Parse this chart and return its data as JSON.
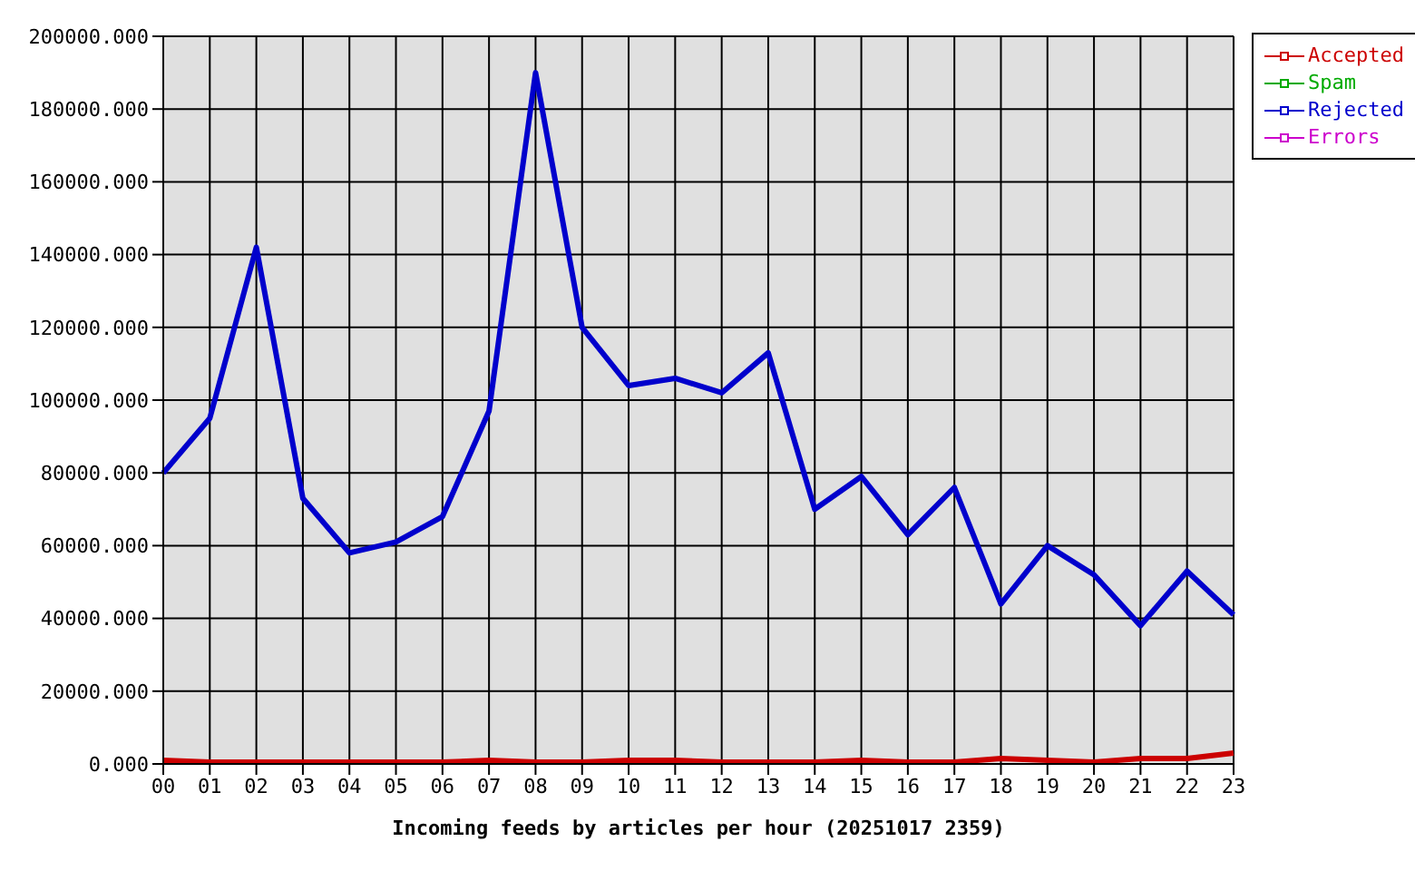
{
  "chart_data": {
    "type": "line",
    "xlabel": "Incoming feeds by articles per hour (20251017 2359)",
    "categories": [
      "00",
      "01",
      "02",
      "03",
      "04",
      "05",
      "06",
      "07",
      "08",
      "09",
      "10",
      "11",
      "12",
      "13",
      "14",
      "15",
      "16",
      "17",
      "18",
      "19",
      "20",
      "21",
      "22",
      "23"
    ],
    "series": [
      {
        "name": "Accepted",
        "color": "#cc0000",
        "values": [
          1000,
          500,
          500,
          500,
          500,
          500,
          500,
          1000,
          500,
          500,
          1000,
          1000,
          500,
          500,
          500,
          1000,
          500,
          500,
          1500,
          1000,
          500,
          1500,
          1500,
          3000
        ]
      },
      {
        "name": "Spam",
        "color": "#00aa00",
        "values": [
          null,
          null,
          null,
          null,
          null,
          null,
          null,
          null,
          null,
          null,
          null,
          null,
          null,
          null,
          null,
          null,
          null,
          null,
          null,
          null,
          null,
          null,
          null,
          null
        ]
      },
      {
        "name": "Rejected",
        "color": "#0000cc",
        "values": [
          80000,
          95000,
          142000,
          73000,
          58000,
          61000,
          68000,
          97000,
          190000,
          120000,
          104000,
          106000,
          102000,
          113000,
          70000,
          79000,
          63000,
          76000,
          44000,
          60000,
          52000,
          38000,
          53000,
          41000
        ]
      },
      {
        "name": "Errors",
        "color": "#cc00cc",
        "values": [
          null,
          null,
          null,
          null,
          null,
          null,
          null,
          null,
          null,
          null,
          null,
          null,
          null,
          null,
          null,
          null,
          null,
          null,
          null,
          null,
          null,
          null,
          null,
          null
        ]
      }
    ],
    "ylim": [
      0,
      200000
    ],
    "yticks": [
      {
        "value": 0,
        "label": "0.000"
      },
      {
        "value": 20000,
        "label": "20000.000"
      },
      {
        "value": 40000,
        "label": "40000.000"
      },
      {
        "value": 60000,
        "label": "60000.000"
      },
      {
        "value": 80000,
        "label": "80000.000"
      },
      {
        "value": 100000,
        "label": "100000.000"
      },
      {
        "value": 120000,
        "label": "120000.000"
      },
      {
        "value": 140000,
        "label": "140000.000"
      },
      {
        "value": 160000,
        "label": "160000.000"
      },
      {
        "value": 180000,
        "label": "180000.000"
      },
      {
        "value": 200000,
        "label": "200000.000"
      }
    ],
    "grid": true,
    "legend": "top right",
    "marker": "none",
    "line_style": "solid"
  }
}
